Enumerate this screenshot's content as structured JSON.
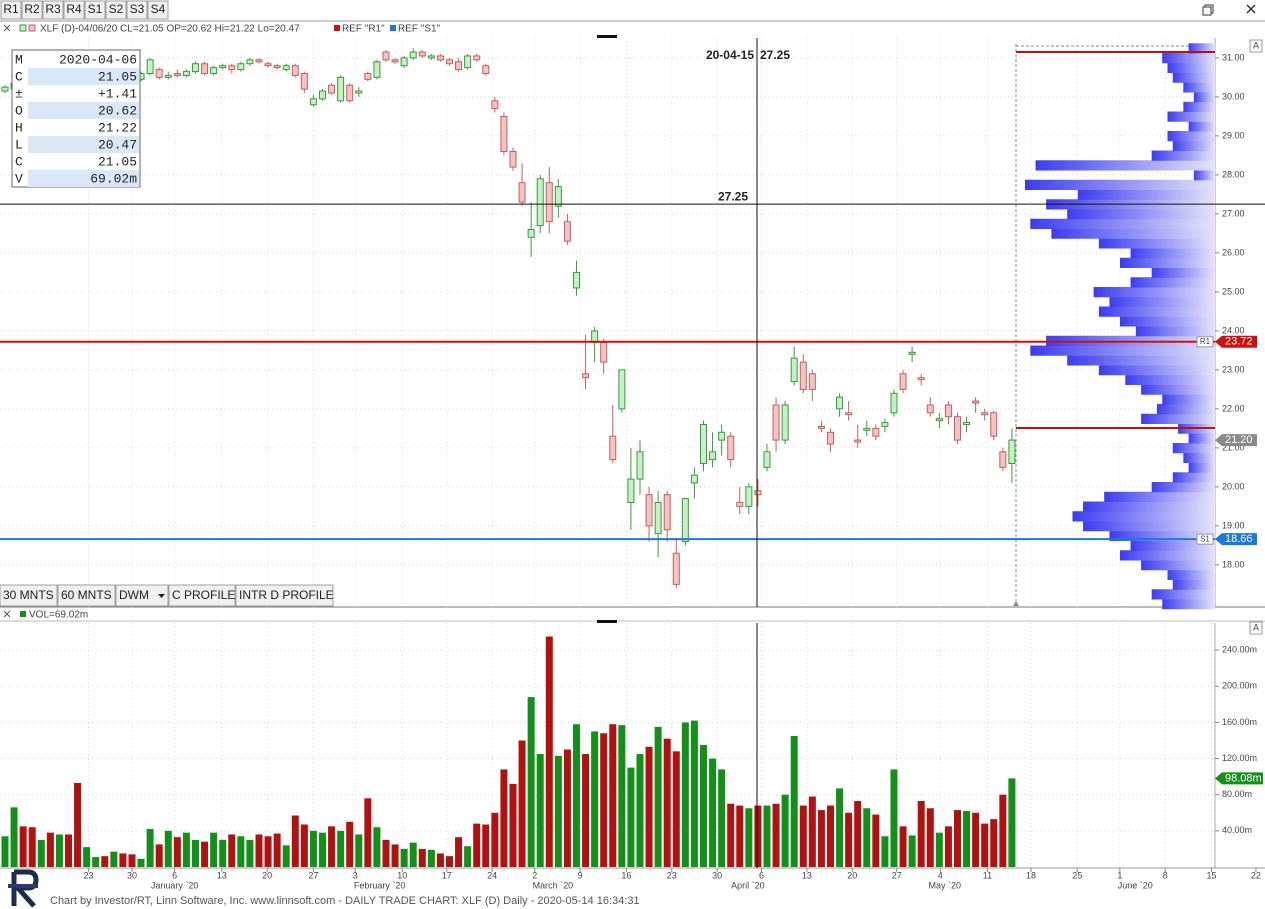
{
  "toolbar": [
    "R1",
    "R2",
    "R3",
    "R4",
    "S1",
    "S2",
    "S3",
    "S4"
  ],
  "buttons": [
    "30 MNTS",
    "60 MNTS",
    "DWM",
    "C PROFILE",
    "INTR D PROFILE"
  ],
  "footer": "Chart by Investor/RT, Linn Software, Inc. www.linnsoft.com - DAILY TRADE CHART: XLF (D) Daily - 2020-05-14 16:34:31",
  "chart_data": [
    {
      "type": "candlestick",
      "legend": [
        "XLF (D)-04/06/20 CL=21.05 OP=20.62 Hi=21.22 Lo=20.47",
        "REF \"R1\"",
        "REF \"S1\""
      ],
      "info_box": {
        "labels": [
          "M",
          "C",
          "±",
          "O",
          "H",
          "L",
          "C",
          "V"
        ],
        "values": [
          "2020-04-06",
          "21.05",
          "+1.41",
          "20.62",
          "21.22",
          "20.47",
          "21.05",
          "69.02m"
        ]
      },
      "crosshair": {
        "date": "20-04-15",
        "price": 27.25
      },
      "ylim": [
        16.92,
        31.51
      ],
      "yticks": [
        {
          "value": 18,
          "label": "18.00"
        },
        {
          "value": 19,
          "label": "19.00"
        },
        {
          "value": 20,
          "label": "20.00"
        },
        {
          "value": 21,
          "label": "21.00"
        },
        {
          "value": 22,
          "label": "22.00"
        },
        {
          "value": 23,
          "label": "23.00"
        },
        {
          "value": 24,
          "label": "24.00"
        },
        {
          "value": 25,
          "label": "25.00"
        },
        {
          "value": 26,
          "label": "26.00"
        },
        {
          "value": 27,
          "label": "27.00"
        },
        {
          "value": 28,
          "label": "28.00"
        },
        {
          "value": 29,
          "label": "29.00"
        },
        {
          "value": 30,
          "label": "30.00"
        },
        {
          "value": 31,
          "label": "31.00"
        }
      ],
      "xlim": [
        -0.55,
        138.9
      ],
      "xticks": [
        {
          "value": 9.2,
          "label": "23"
        },
        {
          "value": 14.0,
          "label": "30"
        },
        {
          "value": 18.7,
          "label": "6"
        },
        {
          "value": 23.9,
          "label": "13"
        },
        {
          "value": 28.9,
          "label": "20"
        },
        {
          "value": 34.0,
          "label": "27"
        },
        {
          "value": 38.6,
          "label": "3"
        },
        {
          "value": 43.8,
          "label": "10"
        },
        {
          "value": 48.7,
          "label": "17"
        },
        {
          "value": 53.7,
          "label": "24"
        },
        {
          "value": 58.4,
          "label": "2"
        },
        {
          "value": 63.4,
          "label": "9"
        },
        {
          "value": 68.5,
          "label": "16"
        },
        {
          "value": 73.5,
          "label": "23"
        },
        {
          "value": 78.5,
          "label": "30"
        },
        {
          "value": 83.4,
          "label": "6"
        },
        {
          "value": 88.4,
          "label": "13"
        },
        {
          "value": 93.4,
          "label": "20"
        },
        {
          "value": 98.3,
          "label": "27"
        },
        {
          "value": 103.1,
          "label": "4"
        },
        {
          "value": 108.3,
          "label": "11"
        },
        {
          "value": 113.1,
          "label": "18"
        },
        {
          "value": 118.2,
          "label": "25"
        },
        {
          "value": 122.9,
          "label": "1"
        },
        {
          "value": 127.9,
          "label": "8"
        },
        {
          "value": 133.0,
          "label": "15"
        },
        {
          "value": 137.9,
          "label": "22"
        }
      ],
      "month_labels": [
        {
          "value": 18.7,
          "label": "January `20"
        },
        {
          "value": 41.3,
          "label": "February `20"
        },
        {
          "value": 60.4,
          "label": "March `20"
        },
        {
          "value": 81.9,
          "label": "April `20"
        },
        {
          "value": 103.6,
          "label": "May `20"
        },
        {
          "value": 124.6,
          "label": "June `20"
        }
      ],
      "up_color": "#3a9a3a",
      "up_fill": "#c8f0c8",
      "down_color": "#c06060",
      "down_fill": "#f4c4c4",
      "open": [
        30.15,
        30.2,
        30.35,
        30.3,
        30.2,
        30.4,
        30.3,
        30.5,
        30.45,
        30.2,
        30.3,
        30.45,
        30.4,
        30.55,
        30.5,
        30.45,
        30.6,
        30.7,
        30.5,
        30.6,
        30.55,
        30.65,
        30.85,
        30.6,
        30.75,
        30.8,
        30.7,
        30.85,
        30.95,
        30.85,
        30.8,
        30.7,
        30.8,
        30.6,
        29.8,
        29.95,
        30.3,
        29.9,
        30.3,
        30.1,
        30.6,
        30.5,
        31.15,
        30.95,
        30.8,
        31.0,
        31.15,
        31.0,
        31.05,
        30.95,
        30.9,
        30.75,
        31.05,
        30.8,
        29.9,
        29.5,
        28.6,
        27.8,
        26.4,
        26.7,
        27.8,
        27.2,
        26.8,
        25.1,
        22.9,
        23.7,
        23.7,
        21.3,
        22.0,
        19.6,
        20.2,
        19.8,
        18.8,
        19.8,
        18.3,
        18.6,
        20.1,
        20.6,
        20.7,
        21.2,
        21.3,
        19.6,
        19.5,
        19.9,
        20.5,
        22.1,
        21.2,
        22.7,
        23.2,
        22.9,
        21.55,
        21.4,
        22.0,
        21.9,
        21.2,
        21.45,
        21.5,
        21.55,
        21.9,
        22.9,
        23.4,
        22.8,
        22.1,
        21.7,
        22.1,
        21.8,
        21.6,
        22.2,
        21.9,
        21.9,
        20.9,
        20.6
      ],
      "high": [
        30.3,
        30.45,
        30.5,
        30.4,
        30.45,
        30.5,
        30.55,
        30.6,
        30.5,
        30.35,
        30.5,
        30.5,
        30.6,
        30.6,
        30.55,
        30.65,
        31.0,
        30.75,
        30.65,
        30.7,
        30.7,
        30.9,
        30.9,
        30.8,
        30.85,
        30.85,
        30.9,
        31.0,
        31.0,
        30.9,
        30.85,
        30.85,
        30.85,
        30.65,
        30.05,
        30.2,
        30.35,
        30.55,
        30.35,
        30.25,
        30.65,
        30.95,
        31.2,
        31.0,
        31.05,
        31.25,
        31.2,
        31.1,
        31.1,
        31.0,
        31.0,
        31.1,
        31.1,
        30.85,
        30.0,
        29.6,
        28.7,
        28.3,
        27.3,
        28.0,
        28.2,
        27.9,
        27.0,
        25.8,
        23.9,
        24.1,
        23.8,
        22.1,
        23.0,
        21.0,
        21.2,
        20.0,
        19.9,
        19.9,
        18.7,
        19.7,
        20.5,
        21.7,
        21.4,
        21.6,
        21.4,
        20.0,
        20.1,
        20.2,
        21.1,
        22.3,
        22.2,
        23.6,
        23.4,
        23.0,
        21.7,
        21.5,
        22.4,
        22.2,
        21.6,
        21.7,
        21.6,
        21.75,
        22.5,
        23.0,
        23.6,
        22.9,
        22.3,
        21.9,
        22.2,
        21.9,
        21.8,
        22.3,
        22.0,
        21.95,
        21.0,
        21.5
      ],
      "low": [
        30.1,
        30.15,
        30.2,
        30.1,
        30.15,
        30.25,
        30.25,
        30.4,
        30.1,
        30.15,
        30.25,
        30.35,
        30.35,
        30.45,
        30.4,
        30.4,
        30.55,
        30.45,
        30.45,
        30.5,
        30.5,
        30.6,
        30.55,
        30.55,
        30.7,
        30.6,
        30.65,
        30.8,
        30.85,
        30.75,
        30.7,
        30.65,
        30.5,
        30.1,
        29.75,
        29.9,
        30.05,
        29.85,
        29.85,
        30.0,
        30.4,
        30.45,
        30.9,
        30.85,
        30.75,
        30.95,
        31.0,
        30.95,
        30.9,
        30.8,
        30.65,
        30.7,
        30.9,
        30.55,
        29.6,
        28.5,
        28.1,
        27.2,
        25.9,
        26.5,
        26.5,
        26.9,
        26.2,
        24.9,
        22.5,
        23.2,
        22.9,
        20.6,
        21.9,
        18.9,
        19.8,
        18.6,
        18.2,
        18.6,
        17.4,
        18.5,
        19.7,
        20.4,
        20.5,
        20.8,
        20.5,
        19.3,
        19.3,
        19.5,
        20.4,
        20.9,
        21.1,
        22.6,
        22.4,
        22.2,
        21.4,
        20.9,
        21.8,
        21.7,
        21.0,
        21.3,
        21.2,
        21.4,
        21.8,
        22.4,
        23.2,
        22.6,
        21.8,
        21.5,
        21.6,
        21.1,
        21.4,
        21.9,
        21.7,
        21.2,
        20.4,
        20.1
      ],
      "close": [
        30.25,
        30.35,
        30.3,
        30.2,
        30.4,
        30.3,
        30.5,
        30.45,
        30.2,
        30.3,
        30.45,
        30.4,
        30.55,
        30.5,
        30.45,
        30.6,
        30.95,
        30.5,
        30.55,
        30.55,
        30.65,
        30.85,
        30.6,
        30.75,
        30.8,
        30.7,
        30.85,
        30.95,
        30.9,
        30.8,
        30.75,
        30.8,
        30.55,
        30.2,
        29.95,
        30.15,
        30.1,
        30.5,
        29.9,
        30.15,
        30.45,
        30.9,
        30.95,
        30.9,
        31.0,
        31.15,
        31.05,
        31.05,
        30.95,
        30.85,
        30.7,
        31.05,
        30.95,
        30.6,
        29.7,
        28.6,
        28.2,
        27.3,
        26.6,
        27.9,
        26.8,
        27.7,
        26.3,
        25.5,
        22.8,
        24.0,
        23.2,
        20.7,
        23.0,
        20.2,
        20.9,
        19.0,
        19.6,
        18.9,
        17.5,
        19.7,
        20.3,
        21.6,
        20.9,
        21.4,
        20.7,
        19.5,
        20.0,
        19.8,
        20.9,
        21.2,
        22.1,
        23.3,
        22.5,
        22.5,
        21.5,
        21.1,
        22.3,
        21.85,
        21.15,
        21.5,
        21.3,
        21.65,
        22.4,
        22.5,
        23.45,
        22.75,
        21.9,
        21.75,
        21.8,
        21.2,
        21.65,
        22.15,
        21.85,
        21.3,
        20.5,
        21.2
      ],
      "ref_lines": [
        {
          "name": "R1",
          "value": 23.72,
          "label": "23.72",
          "color": "#d01010"
        },
        {
          "name": "S1",
          "value": 18.66,
          "label": "18.66",
          "color": "#1a7ad8"
        }
      ],
      "side_lines": [
        {
          "value": 31.15,
          "color": "#c01010"
        },
        {
          "value": 21.51,
          "color": "#c01010"
        }
      ],
      "last_price": {
        "value": 21.2,
        "label": "21.20"
      },
      "profile": {
        "prices": [
          17.0,
          17.25,
          17.5,
          17.75,
          18.0,
          18.25,
          18.5,
          18.75,
          19.0,
          19.25,
          19.5,
          19.75,
          20.0,
          20.25,
          20.5,
          20.75,
          21.0,
          21.25,
          21.5,
          21.75,
          22.0,
          22.25,
          22.5,
          22.75,
          23.0,
          23.25,
          23.5,
          23.75,
          24.0,
          24.25,
          24.5,
          24.75,
          25.0,
          25.25,
          25.5,
          25.75,
          26.0,
          26.25,
          26.5,
          26.75,
          27.0,
          27.25,
          27.5,
          27.75,
          28.0,
          28.25,
          28.5,
          28.75,
          29.0,
          29.25,
          29.5,
          29.75,
          30.0,
          30.25,
          30.5,
          30.75,
          31.0,
          31.25
        ],
        "values": [
          50,
          60,
          40,
          45,
          70,
          90,
          80,
          100,
          125,
          135,
          125,
          105,
          60,
          40,
          25,
          30,
          40,
          25,
          35,
          70,
          55,
          50,
          70,
          85,
          110,
          140,
          175,
          160,
          75,
          90,
          110,
          100,
          115,
          80,
          60,
          90,
          80,
          110,
          155,
          175,
          140,
          160,
          130,
          180,
          20,
          170,
          60,
          40,
          45,
          25,
          45,
          30,
          20,
          30,
          40,
          45,
          50,
          25
        ]
      }
    },
    {
      "type": "bar",
      "legend": "VOL=69.02m",
      "up_color": "#14901a",
      "down_color": "#b01212",
      "ylim": [
        0,
        270
      ],
      "yticks": [
        {
          "value": 40,
          "label": "40.00m"
        },
        {
          "value": 80,
          "label": "80.00m"
        },
        {
          "value": 120,
          "label": "120.00m"
        },
        {
          "value": 160,
          "label": "160.00m"
        },
        {
          "value": 200,
          "label": "200.00m"
        },
        {
          "value": 240,
          "label": "240.00m"
        }
      ],
      "values": [
        34,
        66,
        45,
        44,
        30,
        38,
        36,
        36,
        93,
        22,
        11,
        12,
        17,
        15,
        14,
        9,
        42,
        25,
        40,
        33,
        38,
        30,
        28,
        38,
        30,
        36,
        34,
        30,
        36,
        34,
        37,
        24,
        57,
        47,
        40,
        38,
        45,
        40,
        50,
        36,
        76,
        44,
        30,
        25,
        20,
        27,
        20,
        19,
        15,
        12,
        33,
        23,
        48,
        47,
        60,
        108,
        92,
        140,
        188,
        125,
        255,
        123,
        130,
        158,
        125,
        150,
        148,
        158,
        157,
        110,
        125,
        133,
        155,
        142,
        128,
        160,
        162,
        135,
        120,
        108,
        70,
        68,
        65,
        68,
        68,
        70,
        80,
        145,
        68,
        78,
        63,
        68,
        87,
        60,
        73,
        65,
        58,
        34,
        108,
        45,
        35,
        73,
        65,
        38,
        45,
        63,
        62,
        60,
        48,
        53,
        80,
        98.08
      ],
      "last_label": {
        "value": 98.08,
        "label": "98.08m"
      }
    }
  ]
}
